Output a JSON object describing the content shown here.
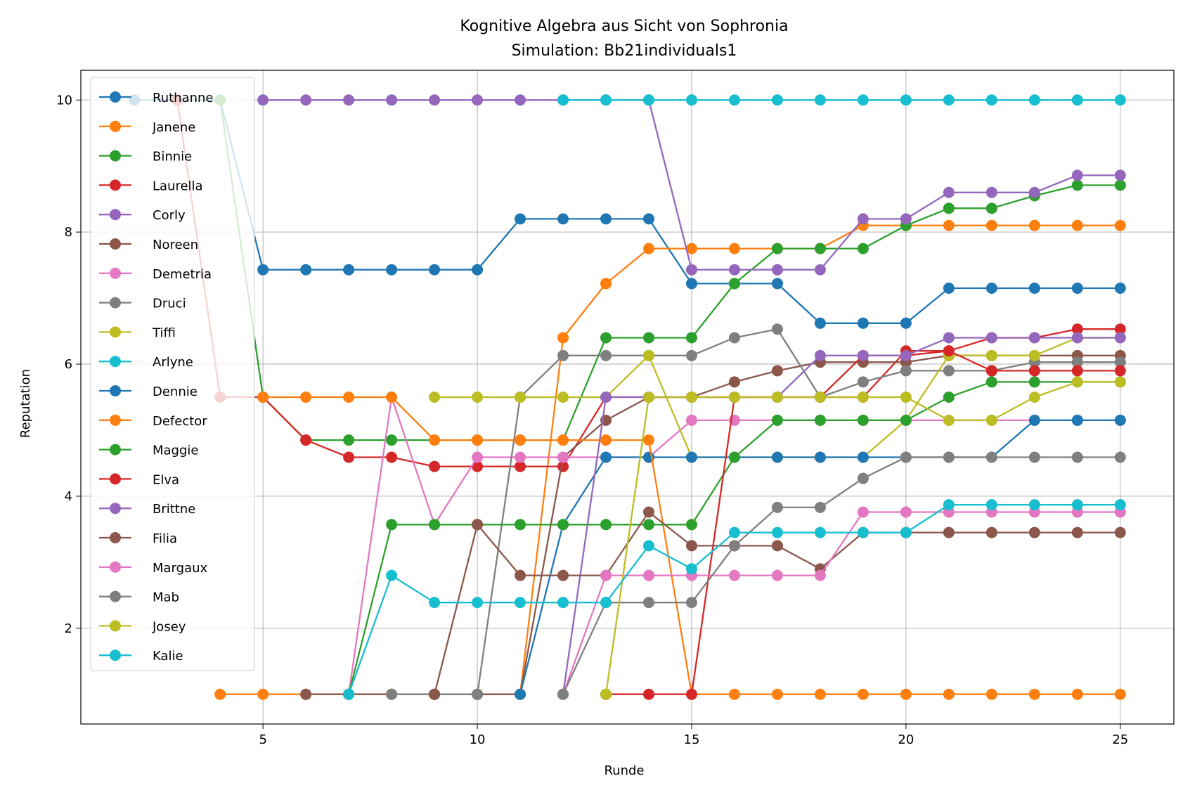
{
  "chart_data": {
    "type": "line",
    "title": "Kognitive Algebra aus Sicht von Sophronia",
    "subtitle": "Simulation: Bb21individuals1",
    "xlabel": "Runde",
    "ylabel": "Reputation",
    "xlim": [
      0.75,
      26.25
    ],
    "ylim": [
      0.55,
      10.45
    ],
    "xticks": [
      5,
      10,
      15,
      20,
      25
    ],
    "yticks": [
      2,
      4,
      6,
      8,
      10
    ],
    "grid": true,
    "legend_position": "upper-left",
    "series": [
      {
        "name": "Ruthanne",
        "color": "#1f77b4",
        "x": [
          2,
          3,
          4,
          5,
          6,
          7,
          8,
          9,
          10,
          11,
          12,
          13,
          14,
          15,
          16,
          17,
          18,
          19,
          20,
          21,
          22,
          23,
          24,
          25
        ],
        "y": [
          10,
          10,
          10,
          7.43,
          7.43,
          7.43,
          7.43,
          7.43,
          7.43,
          8.2,
          8.2,
          8.2,
          8.2,
          7.22,
          7.22,
          7.22,
          6.62,
          6.62,
          6.62,
          7.15,
          7.15,
          7.15,
          7.15,
          7.15
        ]
      },
      {
        "name": "Janene",
        "color": "#ff7f0e",
        "x": [
          4,
          5,
          6,
          7,
          8,
          9,
          10,
          11,
          12,
          13,
          14,
          15,
          16,
          17,
          18,
          19,
          20,
          21,
          22,
          23,
          24,
          25
        ],
        "y": [
          1,
          1,
          1,
          1,
          1,
          1,
          1,
          1,
          6.4,
          7.22,
          7.75,
          7.75,
          7.75,
          7.75,
          7.75,
          8.1,
          8.1,
          8.1,
          8.1,
          8.1,
          8.1,
          8.1
        ]
      },
      {
        "name": "Binnie",
        "color": "#2ca02c",
        "x": [
          4,
          5,
          6,
          7,
          8,
          9,
          10,
          11,
          12,
          13,
          14,
          15,
          16,
          17,
          18,
          19,
          20,
          21,
          22,
          23,
          24,
          25
        ],
        "y": [
          10,
          5.5,
          4.85,
          4.85,
          4.85,
          4.85,
          4.85,
          4.85,
          4.85,
          6.4,
          6.4,
          6.4,
          7.22,
          7.75,
          7.75,
          7.75,
          8.1,
          8.36,
          8.36,
          8.55,
          8.71,
          8.71
        ]
      },
      {
        "name": "Laurella",
        "color": "#d62728",
        "x": [
          3,
          4,
          5,
          6,
          7,
          8,
          9,
          10,
          11,
          12,
          13,
          14,
          15,
          16,
          17,
          18,
          19,
          20,
          21,
          22,
          23,
          24,
          25
        ],
        "y": [
          10,
          5.5,
          5.5,
          4.85,
          4.59,
          4.59,
          4.45,
          4.45,
          4.45,
          4.45,
          5.5,
          5.5,
          5.5,
          5.5,
          5.5,
          5.5,
          5.5,
          6.2,
          6.2,
          6.4,
          6.4,
          6.53,
          6.53
        ]
      },
      {
        "name": "Corly",
        "color": "#9467bd",
        "x": [
          5,
          6,
          7,
          8,
          9,
          10,
          11,
          12,
          13,
          14,
          15,
          16,
          17,
          18,
          19,
          20,
          21,
          22,
          23,
          24,
          25
        ],
        "y": [
          10,
          10,
          10,
          10,
          10,
          10,
          10,
          10,
          10,
          10,
          7.43,
          7.43,
          7.43,
          7.43,
          8.2,
          8.2,
          8.6,
          8.6,
          8.6,
          8.86,
          8.86
        ]
      },
      {
        "name": "Noreen",
        "color": "#8c564b",
        "x": [
          6,
          7,
          8,
          9,
          10,
          11,
          12,
          13,
          14,
          15,
          16,
          17,
          18,
          19,
          20,
          21,
          22,
          23,
          24,
          25
        ],
        "y": [
          1,
          1,
          1,
          1,
          1,
          1,
          4.59,
          5.15,
          5.5,
          5.5,
          5.73,
          5.9,
          6.03,
          6.03,
          6.03,
          6.13,
          6.13,
          6.13,
          6.13,
          6.13
        ]
      },
      {
        "name": "Demetria",
        "color": "#e377c2",
        "x": [
          7,
          8,
          9,
          10,
          11,
          12,
          13,
          14,
          15,
          16,
          17,
          18,
          19,
          20,
          21,
          22,
          23,
          24,
          25
        ],
        "y": [
          1,
          5.5,
          3.57,
          4.59,
          4.59,
          4.59,
          4.59,
          4.59,
          5.15,
          5.15,
          5.15,
          5.15,
          5.15,
          5.15,
          5.15,
          5.15,
          5.15,
          5.15,
          5.15
        ]
      },
      {
        "name": "Druci",
        "color": "#7f7f7f",
        "x": [
          8,
          9,
          10,
          11,
          12,
          13,
          14,
          15,
          16,
          17,
          18,
          19,
          20,
          21,
          22,
          23,
          24,
          25
        ],
        "y": [
          1,
          1,
          1,
          5.5,
          6.13,
          6.13,
          6.13,
          6.13,
          6.4,
          6.53,
          5.5,
          5.73,
          5.9,
          5.9,
          5.9,
          6.03,
          6.03,
          6.03
        ]
      },
      {
        "name": "Tiffi",
        "color": "#bcbd22",
        "x": [
          9,
          10,
          11,
          12,
          13,
          14,
          15,
          16,
          17,
          18,
          19,
          20,
          21,
          22,
          23,
          24,
          25
        ],
        "y": [
          5.5,
          5.5,
          5.5,
          5.5,
          5.5,
          6.13,
          4.59,
          4.59,
          4.59,
          4.59,
          4.59,
          5.15,
          6.13,
          6.13,
          6.13,
          6.4,
          6.4
        ]
      },
      {
        "name": "Arlyne",
        "color": "#17becf",
        "x": [
          12,
          13,
          14,
          15,
          16,
          17,
          18,
          19,
          20,
          21,
          22,
          23,
          24,
          25
        ],
        "y": [
          10,
          10,
          10,
          10,
          10,
          10,
          10,
          10,
          10,
          10,
          10,
          10,
          10,
          10
        ]
      },
      {
        "name": "Dennie",
        "color": "#1f77b4",
        "x": [
          11,
          12,
          13,
          14,
          15,
          16,
          17,
          18,
          19,
          20,
          21,
          22,
          23,
          24,
          25
        ],
        "y": [
          1,
          3.57,
          4.59,
          4.59,
          4.59,
          4.59,
          4.59,
          4.59,
          4.59,
          4.59,
          4.59,
          4.59,
          5.15,
          5.15,
          5.15
        ]
      },
      {
        "name": "Defector",
        "color": "#ff7f0e",
        "x": [
          5,
          6,
          7,
          8,
          9,
          10,
          11,
          12,
          13,
          14,
          15,
          16,
          17,
          18,
          19,
          20,
          21,
          22,
          23,
          24,
          25
        ],
        "y": [
          5.5,
          5.5,
          5.5,
          5.5,
          4.85,
          4.85,
          4.85,
          4.85,
          4.85,
          4.85,
          1,
          1,
          1,
          1,
          1,
          1,
          1,
          1,
          1,
          1,
          1
        ]
      },
      {
        "name": "Maggie",
        "color": "#2ca02c",
        "x": [
          7,
          8,
          9,
          10,
          11,
          12,
          13,
          14,
          15,
          16,
          17,
          18,
          19,
          20,
          21,
          22,
          23,
          24,
          25
        ],
        "y": [
          1,
          3.57,
          3.57,
          3.57,
          3.57,
          3.57,
          3.57,
          3.57,
          3.57,
          4.59,
          5.15,
          5.15,
          5.15,
          5.15,
          5.5,
          5.73,
          5.73,
          5.73,
          5.73
        ]
      },
      {
        "name": "Elva",
        "color": "#d62728",
        "x": [
          13,
          14,
          15,
          16,
          17,
          18,
          19,
          20,
          21,
          22,
          23,
          24,
          25
        ],
        "y": [
          1,
          1,
          1,
          5.5,
          5.5,
          5.5,
          6.13,
          6.13,
          6.2,
          5.9,
          5.9,
          5.9,
          5.9
        ]
      },
      {
        "name": "Brittne",
        "color": "#9467bd",
        "x": [
          12,
          13,
          14,
          15,
          16,
          17,
          18,
          19,
          20,
          21,
          22,
          23,
          24,
          25
        ],
        "y": [
          1,
          5.5,
          5.5,
          5.5,
          5.5,
          5.5,
          6.13,
          6.13,
          6.13,
          6.4,
          6.4,
          6.4,
          6.4,
          6.4
        ]
      },
      {
        "name": "Filia",
        "color": "#8c564b",
        "x": [
          9,
          10,
          11,
          12,
          13,
          14,
          15,
          16,
          17,
          18,
          19,
          20,
          21,
          22,
          23,
          24,
          25
        ],
        "y": [
          1,
          3.57,
          2.8,
          2.8,
          2.8,
          3.76,
          3.25,
          3.25,
          3.25,
          2.9,
          3.45,
          3.45,
          3.45,
          3.45,
          3.45,
          3.45,
          3.45
        ]
      },
      {
        "name": "Margaux",
        "color": "#e377c2",
        "x": [
          12,
          13,
          14,
          15,
          16,
          17,
          18,
          19,
          20,
          21,
          22,
          23,
          24,
          25
        ],
        "y": [
          1,
          2.8,
          2.8,
          2.8,
          2.8,
          2.8,
          2.8,
          3.76,
          3.76,
          3.76,
          3.76,
          3.76,
          3.76,
          3.76
        ]
      },
      {
        "name": "Mab",
        "color": "#7f7f7f",
        "x": [
          12,
          13,
          14,
          15,
          16,
          17,
          18,
          19,
          20,
          21,
          22,
          23,
          24,
          25
        ],
        "y": [
          1,
          2.39,
          2.39,
          2.39,
          3.25,
          3.83,
          3.83,
          4.27,
          4.59,
          4.59,
          4.59,
          4.59,
          4.59,
          4.59
        ]
      },
      {
        "name": "Josey",
        "color": "#bcbd22",
        "x": [
          13,
          14,
          15,
          16,
          17,
          18,
          19,
          20,
          21,
          22,
          23,
          24,
          25
        ],
        "y": [
          1,
          5.5,
          5.5,
          5.5,
          5.5,
          5.5,
          5.5,
          5.5,
          5.15,
          5.15,
          5.5,
          5.73,
          5.73
        ]
      },
      {
        "name": "Kalie",
        "color": "#17becf",
        "x": [
          7,
          8,
          9,
          10,
          11,
          12,
          13,
          14,
          15,
          16,
          17,
          18,
          19,
          20,
          21,
          22,
          23,
          24,
          25
        ],
        "y": [
          1,
          2.8,
          2.39,
          2.39,
          2.39,
          2.39,
          2.39,
          3.25,
          2.9,
          3.45,
          3.45,
          3.45,
          3.45,
          3.45,
          3.87,
          3.87,
          3.87,
          3.87,
          3.87
        ]
      }
    ]
  }
}
